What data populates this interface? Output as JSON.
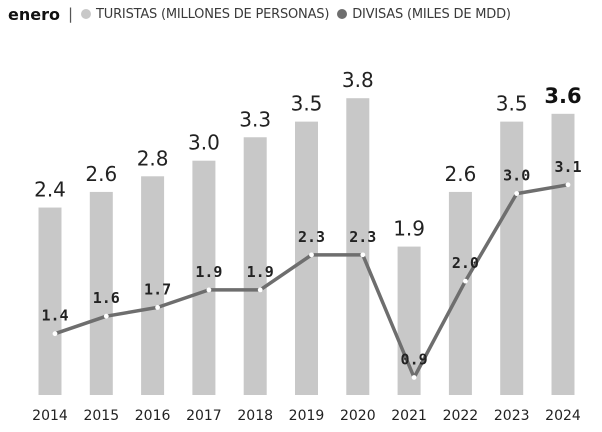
{
  "legend": {
    "title": "enero",
    "separator": "|",
    "bars_label": "TURISTAS (MILLONES DE PERSONAS)",
    "line_label": "DIVISAS (MILES DE MDD)"
  },
  "colors": {
    "bars": "#c8c8c8",
    "line": "#6e6e6e",
    "marker": "#ffffff"
  },
  "chart_data": {
    "type": "bar",
    "title": "enero",
    "categories": [
      "2014",
      "2015",
      "2016",
      "2017",
      "2018",
      "2019",
      "2020",
      "2021",
      "2022",
      "2023",
      "2024"
    ],
    "series": [
      {
        "name": "TURISTAS (MILLONES DE PERSONAS)",
        "type": "bar",
        "values": [
          2.4,
          2.6,
          2.8,
          3.0,
          3.3,
          3.5,
          3.8,
          1.9,
          2.6,
          3.5,
          3.6
        ],
        "labels": [
          "2.4",
          "2.6",
          "2.8",
          "3.0",
          "3.3",
          "3.5",
          "3.8",
          "1.9",
          "2.6",
          "3.5",
          "3.6"
        ]
      },
      {
        "name": "DIVISAS (MILES DE MDD)",
        "type": "line",
        "values": [
          1.4,
          1.6,
          1.7,
          1.9,
          1.9,
          2.3,
          2.3,
          0.9,
          2.0,
          3.0,
          3.1
        ],
        "labels": [
          "1.4",
          "1.6",
          "1.7",
          "1.9",
          "1.9",
          "2.3",
          "2.3",
          "0.9",
          "2.0",
          "3.0",
          "3.1"
        ]
      }
    ],
    "bar_ylim": [
      0,
      4.75
    ],
    "line_ylim": [
      0.7,
      3.6
    ],
    "highlight_last": true,
    "xlabel": "",
    "ylabel": ""
  }
}
